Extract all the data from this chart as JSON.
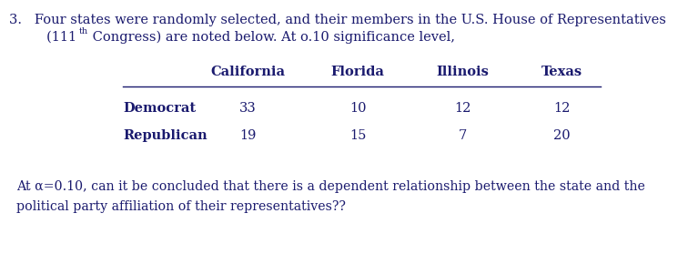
{
  "col_headers": [
    "California",
    "Florida",
    "Illinois",
    "Texas"
  ],
  "row_labels": [
    "Democrat",
    "Republican"
  ],
  "table_data": [
    [
      33,
      10,
      12,
      12
    ],
    [
      19,
      15,
      7,
      20
    ]
  ],
  "footer_line1": "At α=0.10, can it be concluded that there is a dependent relationship between the state and the",
  "footer_line2": "political party affiliation of their representatives??",
  "bg_color": "#ffffff",
  "text_color": "#1a1a6e",
  "font_size_body": 10.5,
  "font_size_table": 10.5,
  "font_size_footer": 10.2,
  "line1": "3.   Four states were randomly selected, and their members in the U.S. House of Representatives",
  "line2_pre": "     (111",
  "line2_sup": "th",
  "line2_post": " Congress) are noted below. At o.10 significance level,"
}
